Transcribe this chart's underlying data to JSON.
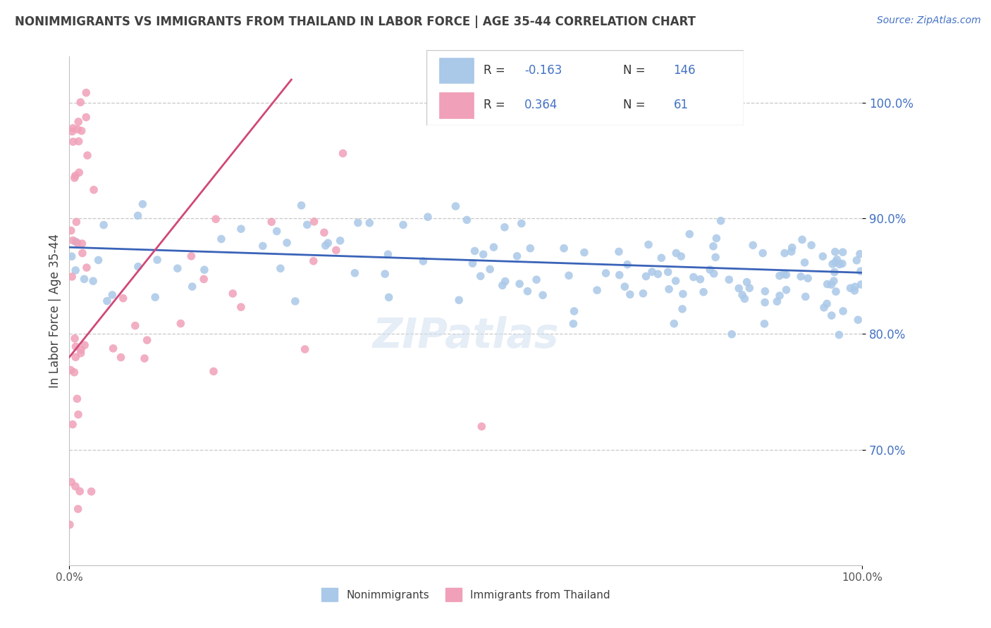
{
  "title": "NONIMMIGRANTS VS IMMIGRANTS FROM THAILAND IN LABOR FORCE | AGE 35-44 CORRELATION CHART",
  "source_text": "Source: ZipAtlas.com",
  "ylabel": "In Labor Force | Age 35-44",
  "xlim": [
    0.0,
    1.0
  ],
  "ylim": [
    0.6,
    1.04
  ],
  "yticks": [
    0.7,
    0.8,
    0.9,
    1.0
  ],
  "ytick_labels": [
    "70.0%",
    "80.0%",
    "90.0%",
    "100.0%"
  ],
  "xtick_labels": [
    "0.0%",
    "100.0%"
  ],
  "legend_blue_label": "Nonimmigrants",
  "legend_pink_label": "Immigrants from Thailand",
  "R_blue": -0.163,
  "N_blue": 146,
  "R_pink": 0.364,
  "N_pink": 61,
  "blue_color": "#aac8e8",
  "blue_line_color": "#3a63b8",
  "pink_color": "#f0a0b8",
  "pink_line_color": "#d04878",
  "background_color": "#ffffff",
  "grid_color": "#c8c8c8",
  "title_color": "#404040",
  "source_color": "#4472c4",
  "tick_color": "#4472c4",
  "watermark_color": "#d0dff0",
  "legend_box_edge": "#c8c8c8"
}
